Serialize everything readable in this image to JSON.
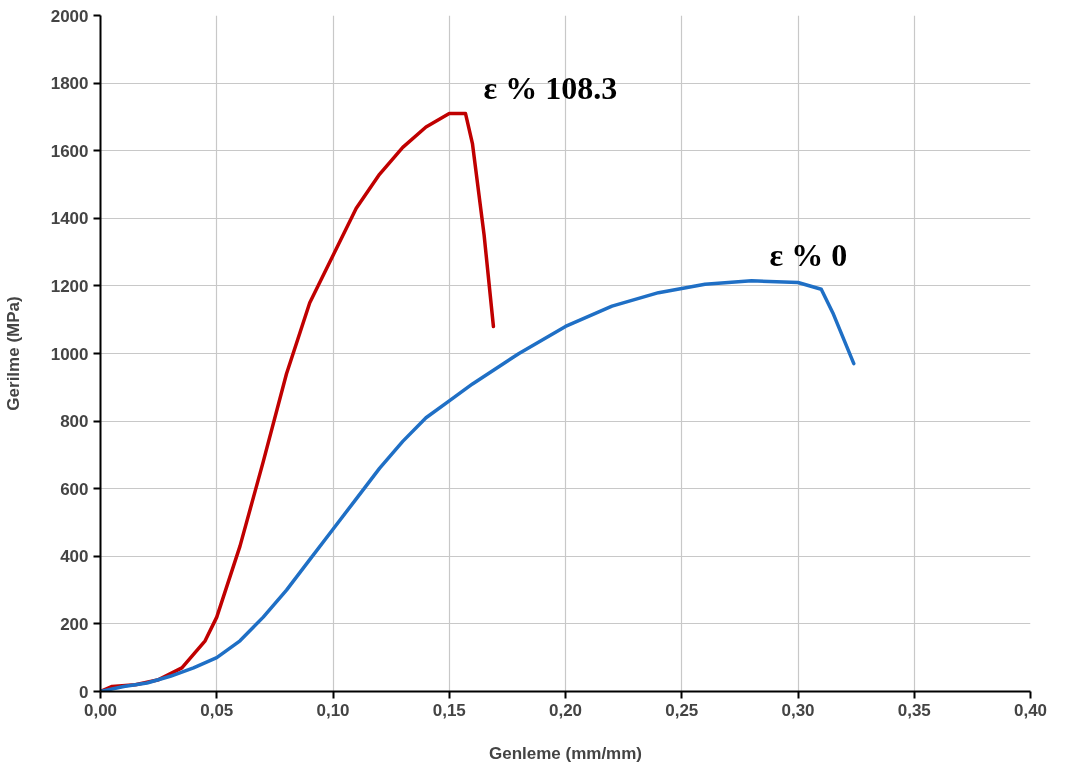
{
  "chart_data": {
    "type": "line",
    "xlabel": "Genleme (mm/mm)",
    "ylabel": "Gerilme (MPa)",
    "xlim": [
      0,
      0.4
    ],
    "ylim": [
      0,
      2000
    ],
    "xticks": [
      {
        "value": 0,
        "label": "0,00"
      },
      {
        "value": 0.05,
        "label": "0,05"
      },
      {
        "value": 0.1,
        "label": "0,10"
      },
      {
        "value": 0.15,
        "label": "0,15"
      },
      {
        "value": 0.2,
        "label": "0,20"
      },
      {
        "value": 0.25,
        "label": "0,25"
      },
      {
        "value": 0.3,
        "label": "0,30"
      },
      {
        "value": 0.35,
        "label": "0,35"
      },
      {
        "value": 0.4,
        "label": "0,40"
      }
    ],
    "yticks": [
      0,
      200,
      400,
      600,
      800,
      1000,
      1200,
      1400,
      1600,
      1800,
      2000
    ],
    "grid": true,
    "line_style": "solid",
    "series": [
      {
        "name": "ε % 108.3",
        "color": "#c00000",
        "x": [
          0,
          0.005,
          0.015,
          0.025,
          0.035,
          0.045,
          0.05,
          0.06,
          0.07,
          0.08,
          0.09,
          0.1,
          0.11,
          0.12,
          0.13,
          0.14,
          0.15,
          0.157,
          0.16,
          0.165,
          0.169
        ],
        "values": [
          0,
          15,
          20,
          35,
          70,
          150,
          220,
          430,
          680,
          940,
          1150,
          1290,
          1430,
          1530,
          1610,
          1670,
          1710,
          1710,
          1620,
          1350,
          1080
        ]
      },
      {
        "name": "ε % 0",
        "color": "#1f6fc5",
        "x": [
          0,
          0.01,
          0.02,
          0.03,
          0.04,
          0.05,
          0.06,
          0.07,
          0.08,
          0.09,
          0.1,
          0.11,
          0.12,
          0.13,
          0.14,
          0.15,
          0.16,
          0.18,
          0.2,
          0.22,
          0.24,
          0.26,
          0.28,
          0.3,
          0.31,
          0.315,
          0.324
        ],
        "values": [
          0,
          15,
          25,
          45,
          70,
          100,
          150,
          220,
          300,
          390,
          480,
          570,
          660,
          740,
          810,
          860,
          910,
          1000,
          1080,
          1140,
          1180,
          1205,
          1215,
          1210,
          1190,
          1120,
          970
        ]
      }
    ]
  }
}
